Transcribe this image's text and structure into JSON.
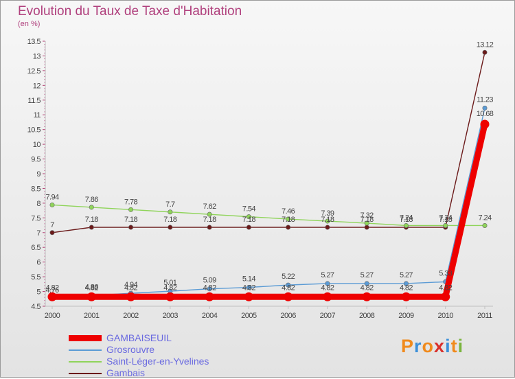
{
  "header": {
    "title": "Evolution du Taux de Taxe d'Habitation",
    "subtitle": "(en %)"
  },
  "logo": {
    "letters": [
      "P",
      "r",
      "o",
      "x",
      "i",
      "t",
      "i"
    ],
    "colors": [
      "#f08a1c",
      "#3a8fd9",
      "#f08a1c",
      "#d9302c",
      "#3a8fd9",
      "#f08a1c",
      "#7ab43c"
    ]
  },
  "chart_data": {
    "type": "line",
    "title": "Evolution du Taux de Taxe d'Habitation",
    "ylabel": "(en %)",
    "x": [
      "2000",
      "2001",
      "2002",
      "2003",
      "2004",
      "2005",
      "2006",
      "2007",
      "2008",
      "2009",
      "2010",
      "2011"
    ],
    "ylim": [
      4.5,
      13.5
    ],
    "yticks": [
      "4.5",
      "5",
      "5.5",
      "6",
      "6.5",
      "7",
      "7.5",
      "8",
      "8.5",
      "9",
      "9.5",
      "10",
      "10.5",
      "11",
      "11.5",
      "12",
      "12.5",
      "13",
      "13.5"
    ],
    "grid": false,
    "legend_position": "bottom-left",
    "series": [
      {
        "name": "GAMBAISEUIL",
        "color": "#ee0000",
        "values": [
          4.82,
          4.82,
          4.82,
          4.82,
          4.82,
          4.82,
          4.82,
          4.82,
          4.82,
          4.82,
          4.82,
          10.68
        ],
        "labels": [
          "4.82",
          "4.82",
          "4.82",
          "4.82",
          "4.82",
          "4.82",
          "4.82",
          "4.82",
          "4.82",
          "4.82",
          "4.82",
          "10.68"
        ]
      },
      {
        "name": "Grosrouvre",
        "color": "#5b9bd5",
        "values": [
          4.76,
          4.86,
          4.94,
          5.01,
          5.09,
          5.14,
          5.22,
          5.27,
          5.27,
          5.27,
          5.33,
          11.23
        ],
        "labels": [
          "4.76",
          "4.86",
          "4.94",
          "5.01",
          "5.09",
          "5.14",
          "5.22",
          "5.27",
          "5.27",
          "5.27",
          "5.33",
          "11.23"
        ]
      },
      {
        "name": "Saint-Léger-en-Yvelines",
        "color": "#8fd45a",
        "values": [
          7.94,
          7.86,
          7.78,
          7.7,
          7.62,
          7.54,
          7.46,
          7.39,
          7.32,
          7.24,
          7.24,
          7.24
        ],
        "labels": [
          "7.94",
          "7.86",
          "7.78",
          "7.7",
          "7.62",
          "7.54",
          "7.46",
          "7.39",
          "7.32",
          "7.24",
          "7.24",
          "7.24"
        ]
      },
      {
        "name": "Gambais",
        "color": "#6b1a1a",
        "values": [
          7,
          7.18,
          7.18,
          7.18,
          7.18,
          7.18,
          7.18,
          7.18,
          7.18,
          7.18,
          7.18,
          13.12
        ],
        "labels": [
          "7",
          "7.18",
          "7.18",
          "7.18",
          "7.18",
          "7.18",
          "7.18",
          "7.18",
          "7.18",
          "7.18",
          "7.18",
          "13.12"
        ]
      }
    ]
  }
}
